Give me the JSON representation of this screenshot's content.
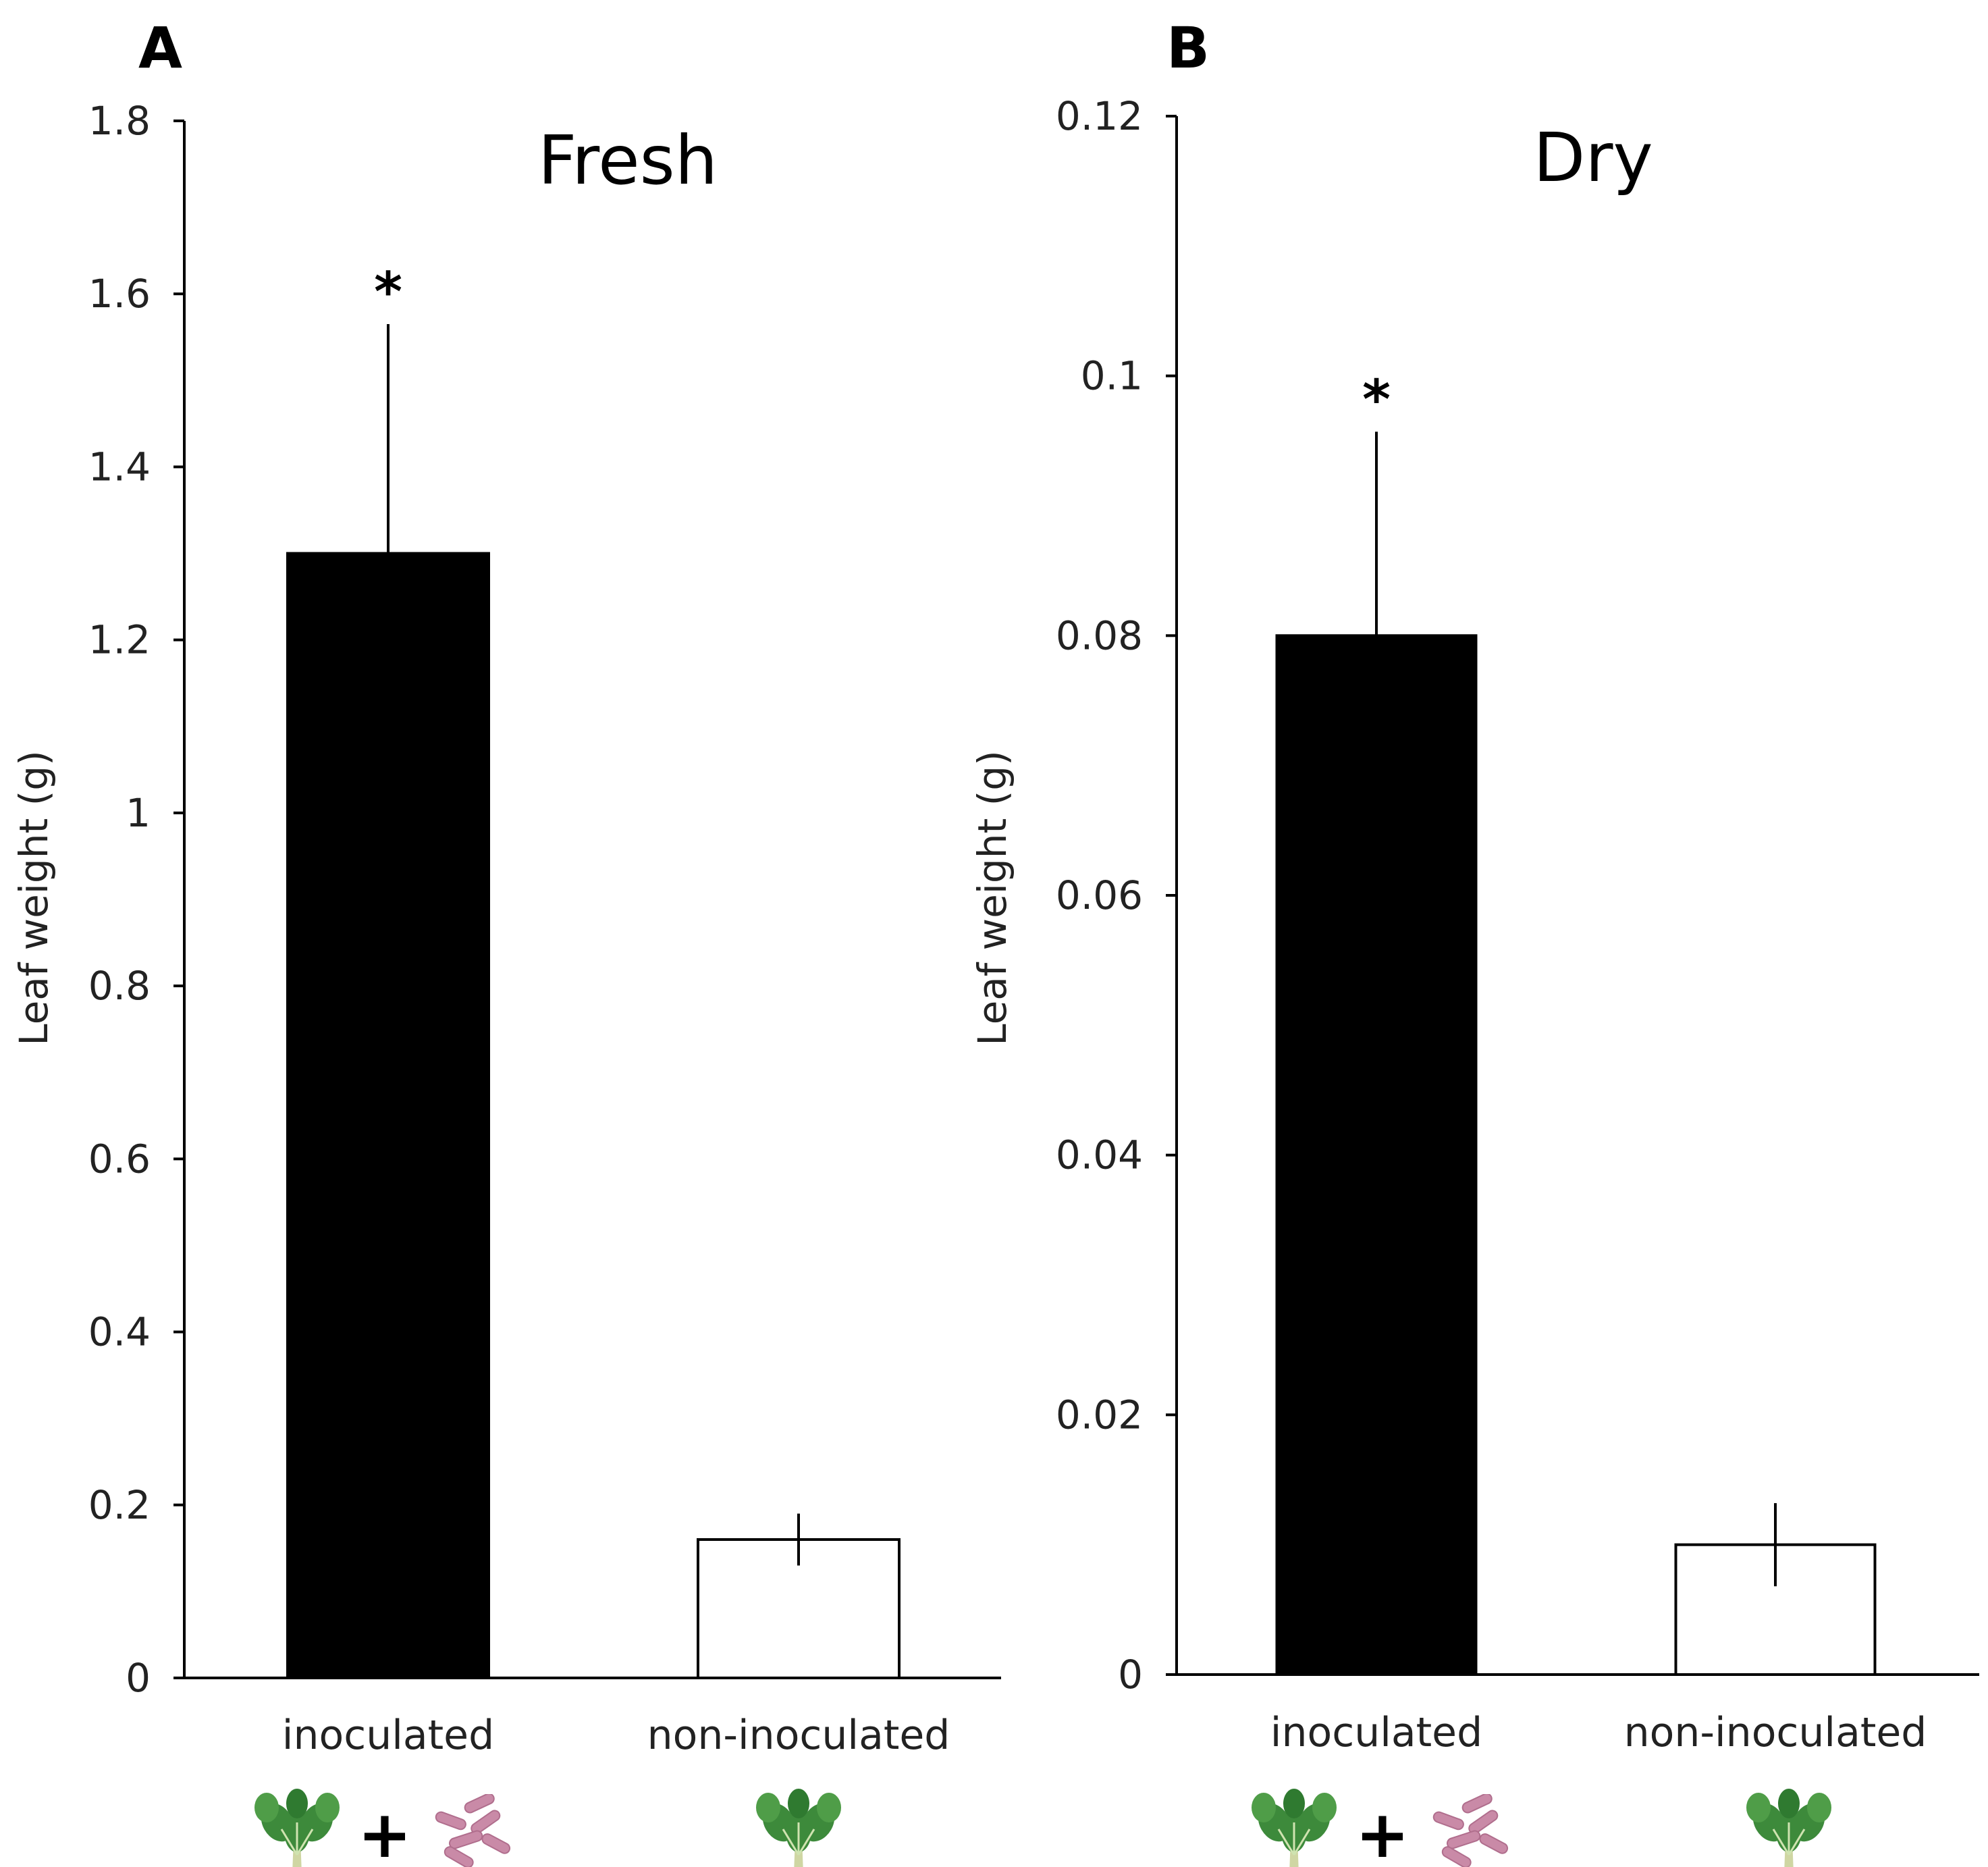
{
  "colors": {
    "bar_inoculated": "#000000",
    "bar_non_inoculated": "#ffffff",
    "axis": "#000000",
    "plant": "#3d8a3b",
    "plant_stem": "#cfd6a3",
    "bacteria": "#c98aa7"
  },
  "icons": {
    "plant": "plant-seedling-icon",
    "bacteria": "bacteria-icon",
    "plus": "+"
  },
  "chart_data": [
    {
      "panel": "A",
      "type": "bar",
      "title": "Fresh",
      "ylabel": "Leaf weight (g)",
      "xlabel": "",
      "ylim": [
        0,
        1.8
      ],
      "yticks": [
        "0",
        "0.2",
        "0.4",
        "0.6",
        "0.8",
        "1",
        "1.2",
        "1.4",
        "1.6",
        "1.8"
      ],
      "ytick_values": [
        0,
        0.2,
        0.4,
        0.6,
        0.8,
        1.0,
        1.2,
        1.4,
        1.6,
        1.8
      ],
      "categories": [
        "inoculated",
        "non-inoculated"
      ],
      "values": [
        1.3,
        0.16
      ],
      "errors": [
        0.265,
        0.03
      ],
      "error_style": [
        "upper",
        "both"
      ],
      "significance": [
        "*",
        ""
      ],
      "grid": false
    },
    {
      "panel": "B",
      "type": "bar",
      "title": "Dry",
      "ylabel": "Leaf weight (g)",
      "xlabel": "",
      "ylim": [
        0,
        0.12
      ],
      "yticks": [
        "0",
        "0.02",
        "0.04",
        "0.06",
        "0.08",
        "0.1",
        "0.12"
      ],
      "ytick_values": [
        0,
        0.02,
        0.04,
        0.06,
        0.08,
        0.1,
        0.12
      ],
      "categories": [
        "inoculated",
        "non-inoculated"
      ],
      "values": [
        0.08,
        0.01
      ],
      "errors": [
        0.0157,
        0.0032
      ],
      "error_style": [
        "upper",
        "both"
      ],
      "significance": [
        "*",
        ""
      ],
      "grid": false
    }
  ]
}
